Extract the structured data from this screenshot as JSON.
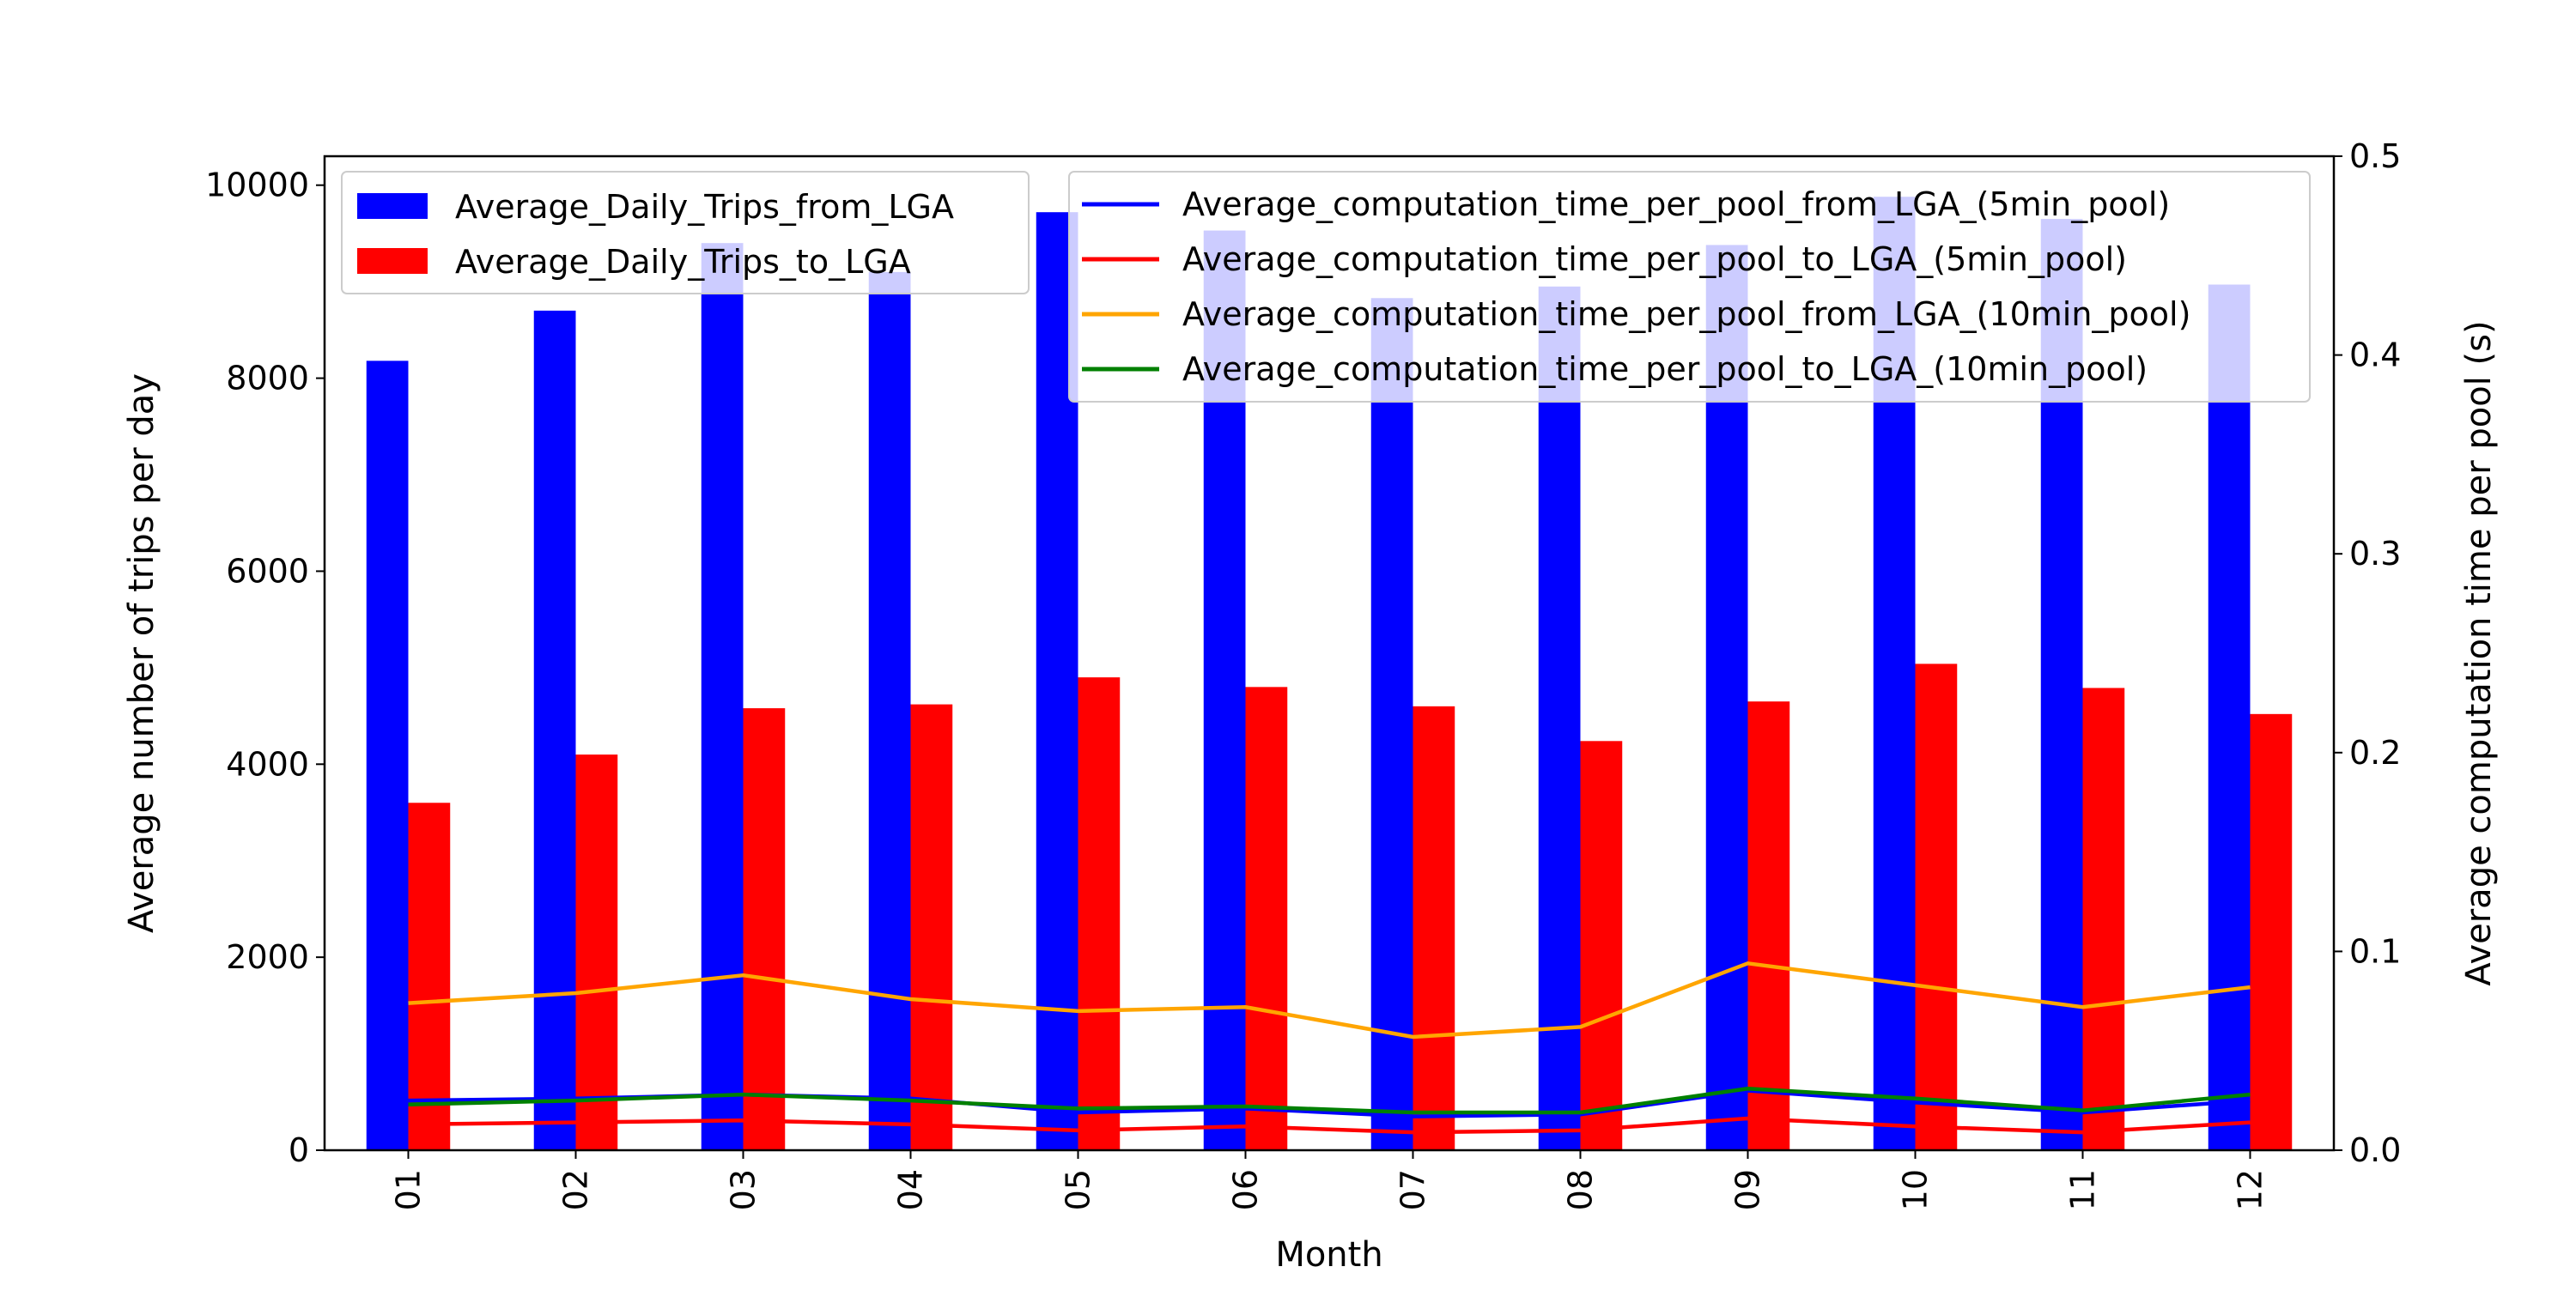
{
  "chart_data": {
    "type": "bar",
    "categories": [
      "01",
      "02",
      "03",
      "04",
      "05",
      "06",
      "07",
      "08",
      "09",
      "10",
      "11",
      "12"
    ],
    "xlabel": "Month",
    "ylabel": "Average number of trips per day",
    "y2label": "Average computation time per pool (s)",
    "ylim": [
      0,
      10300
    ],
    "y2lim": [
      0,
      0.5
    ],
    "yticks": [
      0,
      2000,
      4000,
      6000,
      8000,
      10000
    ],
    "y2ticks": [
      "0.0",
      "0.1",
      "0.2",
      "0.3",
      "0.4",
      "0.5"
    ],
    "grid": false,
    "bar_series": [
      {
        "name": "Average_Daily_Trips_from_LGA",
        "color": "#0000ff",
        "values": [
          8180,
          8700,
          9400,
          9100,
          9720,
          9530,
          8830,
          8950,
          9380,
          9880,
          9650,
          8970
        ]
      },
      {
        "name": "Average_Daily_Trips_to_LGA",
        "color": "#ff0000",
        "values": [
          3600,
          4100,
          4580,
          4620,
          4900,
          4800,
          4600,
          4240,
          4650,
          5040,
          4790,
          4520
        ]
      }
    ],
    "line_series": [
      {
        "name": "Average_computation_time_per_pool_from_LGA_(5min_pool)",
        "color": "#0000ff",
        "values": [
          0.025,
          0.026,
          0.028,
          0.026,
          0.019,
          0.021,
          0.017,
          0.018,
          0.03,
          0.024,
          0.019,
          0.025
        ]
      },
      {
        "name": "Average_computation_time_per_pool_to_LGA_(5min_pool)",
        "color": "#ff0000",
        "values": [
          0.013,
          0.014,
          0.015,
          0.013,
          0.01,
          0.012,
          0.009,
          0.01,
          0.016,
          0.012,
          0.009,
          0.014
        ]
      },
      {
        "name": "Average_computation_time_per_pool_from_LGA_(10min_pool)",
        "color": "#ffa500",
        "values": [
          0.074,
          0.079,
          0.088,
          0.076,
          0.07,
          0.072,
          0.057,
          0.062,
          0.094,
          0.083,
          0.072,
          0.082
        ]
      },
      {
        "name": "Average_computation_time_per_pool_to_LGA_(10min_pool)",
        "color": "#008000",
        "values": [
          0.023,
          0.025,
          0.028,
          0.025,
          0.021,
          0.022,
          0.019,
          0.019,
          0.031,
          0.026,
          0.02,
          0.028
        ]
      }
    ],
    "legend_left_placement": "upper-left",
    "legend_right_placement": "upper-right"
  }
}
